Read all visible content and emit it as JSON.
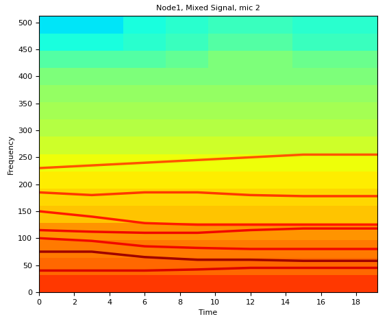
{
  "chart_data": {
    "type": "heatmap",
    "title": "Node1, Mixed Signal, mic 2",
    "x_label": "Time",
    "y_label": "Frequency",
    "color": "jet",
    "xlim": [
      0,
      19.2
    ],
    "xticks": [
      0,
      2,
      4,
      6,
      8,
      10,
      12,
      14,
      16,
      18
    ],
    "ylim": [
      0,
      512
    ],
    "yticks": [
      0,
      50,
      100,
      150,
      200,
      250,
      300,
      350,
      400,
      450,
      500
    ],
    "zlim": [
      0,
      1
    ],
    "x_edges": [
      0,
      2.4,
      4.8,
      7.2,
      9.6,
      12.0,
      14.4,
      16.8,
      19.2
    ],
    "y_edges": [
      0,
      32,
      64,
      96,
      128,
      160,
      192,
      224,
      256,
      288,
      320,
      352,
      384,
      416,
      448,
      480,
      512
    ],
    "cells": [
      [
        0.85,
        0.85,
        0.85,
        0.85,
        0.85,
        0.85,
        0.85,
        0.85
      ],
      [
        0.8,
        0.8,
        0.8,
        0.8,
        0.8,
        0.8,
        0.8,
        0.8
      ],
      [
        0.78,
        0.78,
        0.78,
        0.78,
        0.78,
        0.78,
        0.78,
        0.78
      ],
      [
        0.75,
        0.75,
        0.75,
        0.75,
        0.75,
        0.75,
        0.75,
        0.75
      ],
      [
        0.7,
        0.7,
        0.7,
        0.7,
        0.7,
        0.7,
        0.7,
        0.7
      ],
      [
        0.68,
        0.68,
        0.68,
        0.68,
        0.68,
        0.68,
        0.68,
        0.68
      ],
      [
        0.66,
        0.66,
        0.66,
        0.66,
        0.66,
        0.66,
        0.66,
        0.66
      ],
      [
        0.64,
        0.64,
        0.64,
        0.64,
        0.64,
        0.64,
        0.64,
        0.64
      ],
      [
        0.6,
        0.6,
        0.6,
        0.6,
        0.6,
        0.6,
        0.6,
        0.6
      ],
      [
        0.57,
        0.57,
        0.57,
        0.57,
        0.57,
        0.57,
        0.57,
        0.57
      ],
      [
        0.55,
        0.55,
        0.55,
        0.55,
        0.55,
        0.55,
        0.55,
        0.55
      ],
      [
        0.53,
        0.53,
        0.53,
        0.53,
        0.53,
        0.53,
        0.53,
        0.53
      ],
      [
        0.5,
        0.5,
        0.5,
        0.5,
        0.5,
        0.5,
        0.5,
        0.5
      ],
      [
        0.45,
        0.45,
        0.45,
        0.47,
        0.5,
        0.5,
        0.48,
        0.48
      ],
      [
        0.38,
        0.38,
        0.4,
        0.42,
        0.45,
        0.45,
        0.42,
        0.42
      ],
      [
        0.35,
        0.35,
        0.38,
        0.4,
        0.42,
        0.42,
        0.4,
        0.4
      ]
    ],
    "ridges": [
      {
        "level": 0.97,
        "x": [
          0,
          3,
          6,
          9,
          12,
          15,
          19.2
        ],
        "values": [
          75,
          75,
          65,
          60,
          60,
          58,
          58
        ]
      },
      {
        "level": 0.92,
        "x": [
          0,
          3,
          6,
          9,
          12,
          15,
          19.2
        ],
        "values": [
          40,
          40,
          40,
          42,
          45,
          45,
          45
        ]
      },
      {
        "level": 0.9,
        "x": [
          0,
          3,
          6,
          9,
          12,
          15,
          19.2
        ],
        "values": [
          100,
          95,
          85,
          82,
          80,
          80,
          80
        ]
      },
      {
        "level": 0.9,
        "x": [
          0,
          3,
          6,
          9,
          12,
          15,
          19.2
        ],
        "values": [
          115,
          112,
          110,
          110,
          115,
          118,
          118
        ]
      },
      {
        "level": 0.88,
        "x": [
          0,
          3,
          6,
          9,
          12,
          15,
          19.2
        ],
        "values": [
          150,
          140,
          128,
          125,
          125,
          125,
          125
        ]
      },
      {
        "level": 0.85,
        "x": [
          0,
          3,
          6,
          9,
          12,
          15,
          19.2
        ],
        "values": [
          185,
          180,
          185,
          185,
          180,
          178,
          178
        ]
      },
      {
        "level": 0.82,
        "x": [
          0,
          3,
          6,
          9,
          12,
          15,
          19.2
        ],
        "values": [
          230,
          235,
          240,
          245,
          250,
          255,
          255
        ]
      }
    ]
  }
}
